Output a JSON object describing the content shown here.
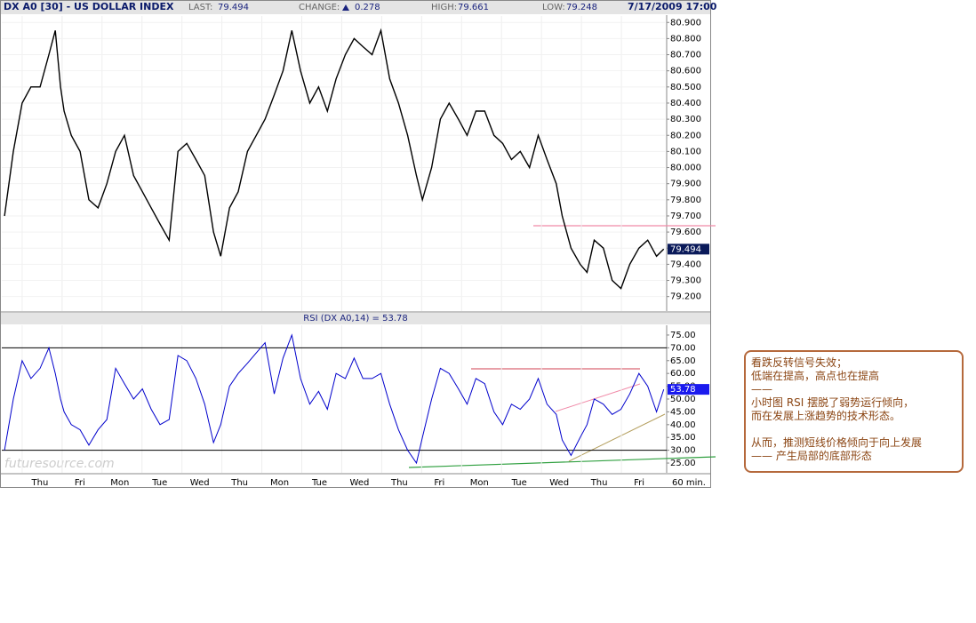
{
  "header": {
    "title": "DX A0 [30] - US DOLLAR INDEX",
    "last_label": "LAST:",
    "last": "79.494",
    "change_label": "CHANGE:",
    "change": "0.278",
    "high_label": "HIGH:",
    "high": "79.661",
    "low_label": "LOW:",
    "low": "79.248",
    "datetime": "7/17/2009 17:00"
  },
  "watermark": "futuresource.com",
  "annotation": {
    "lines": [
      "看跌反转信号失效；",
      "低端在提高，高点也在提高",
      "——",
      "小时图 RSI 摆脱了弱势运行倾向，",
      "而在发展上涨趋势的技术形态。",
      "从而，推测短线价格倾向于向上发展",
      "—— 产生局部的底部形态"
    ]
  },
  "chart_data": [
    {
      "type": "line",
      "color": "#000000",
      "grid": true,
      "x": [
        0.07,
        0.29,
        0.51,
        0.73,
        0.96,
        1.18,
        1.34,
        1.47,
        1.56,
        1.74,
        1.96,
        2.18,
        2.41,
        2.63,
        2.85,
        3.07,
        3.3,
        3.52,
        3.74,
        3.96,
        4.19,
        4.41,
        4.63,
        4.86,
        5.08,
        5.3,
        5.48,
        5.7,
        5.92,
        6.15,
        6.37,
        6.59,
        6.82,
        7.04,
        7.26,
        7.48,
        7.71,
        7.93,
        8.15,
        8.37,
        8.6,
        8.82,
        9.04,
        9.27,
        9.49,
        9.71,
        9.93,
        10.16,
        10.38,
        10.53,
        10.76,
        10.98,
        11.2,
        11.43,
        11.65,
        11.87,
        12.09,
        12.32,
        12.54,
        12.76,
        12.98,
        13.21,
        13.43,
        13.65,
        13.88,
        14.03,
        14.25,
        14.48,
        14.65,
        14.83,
        15.06,
        15.28,
        15.5,
        15.72,
        15.95,
        16.17,
        16.39,
        16.57
      ],
      "values": [
        79.7,
        80.1,
        80.4,
        80.5,
        80.5,
        80.7,
        80.85,
        80.5,
        80.35,
        80.2,
        80.1,
        79.8,
        79.75,
        79.9,
        80.1,
        80.2,
        79.95,
        79.85,
        79.75,
        79.65,
        79.55,
        80.1,
        80.15,
        80.05,
        79.95,
        79.6,
        79.45,
        79.75,
        79.85,
        80.1,
        80.2,
        80.3,
        80.45,
        80.6,
        80.85,
        80.6,
        80.4,
        80.5,
        80.35,
        80.55,
        80.7,
        80.8,
        80.75,
        80.7,
        80.85,
        80.55,
        80.4,
        80.2,
        79.95,
        79.8,
        80.0,
        80.3,
        80.4,
        80.3,
        80.2,
        80.35,
        80.35,
        80.2,
        80.15,
        80.05,
        80.1,
        80.0,
        80.2,
        80.05,
        79.9,
        79.7,
        79.5,
        79.4,
        79.35,
        79.55,
        79.5,
        79.3,
        79.25,
        79.4,
        79.5,
        79.55,
        79.45,
        79.494
      ],
      "xlim": [
        0,
        16.6
      ],
      "ylim": [
        79.11,
        80.94
      ],
      "yticks": [
        {
          "value": 79.2,
          "label": "79.200"
        },
        {
          "value": 79.3,
          "label": "79.300"
        },
        {
          "value": 79.4,
          "label": "79.400"
        },
        {
          "value": 79.5,
          "label": "79.500"
        },
        {
          "value": 79.6,
          "label": "79.600"
        },
        {
          "value": 79.7,
          "label": "79.700"
        },
        {
          "value": 79.8,
          "label": "79.800"
        },
        {
          "value": 79.9,
          "label": "79.900"
        },
        {
          "value": 80.0,
          "label": "80.000"
        },
        {
          "value": 80.1,
          "label": "80.100"
        },
        {
          "value": 80.2,
          "label": "80.200"
        },
        {
          "value": 80.3,
          "label": "80.300"
        },
        {
          "value": 80.4,
          "label": "80.400"
        },
        {
          "value": 80.5,
          "label": "80.500"
        },
        {
          "value": 80.6,
          "label": "80.600"
        },
        {
          "value": 80.7,
          "label": "80.700"
        },
        {
          "value": 80.8,
          "label": "80.800"
        },
        {
          "value": 80.9,
          "label": "80.900"
        }
      ]
    },
    {
      "type": "line",
      "title": "RSI (DX A0,14) = 53.78",
      "color": "#0000cc",
      "last_label": "53.78",
      "xlabel": "60 min.",
      "x": [
        0.07,
        0.29,
        0.51,
        0.73,
        0.96,
        1.18,
        1.34,
        1.47,
        1.56,
        1.74,
        1.96,
        2.18,
        2.41,
        2.63,
        2.85,
        3.07,
        3.3,
        3.52,
        3.74,
        3.96,
        4.19,
        4.41,
        4.63,
        4.86,
        5.08,
        5.3,
        5.48,
        5.7,
        5.92,
        6.15,
        6.37,
        6.59,
        6.82,
        7.04,
        7.26,
        7.48,
        7.71,
        7.93,
        8.15,
        8.37,
        8.6,
        8.82,
        9.04,
        9.27,
        9.49,
        9.71,
        9.93,
        10.16,
        10.38,
        10.53,
        10.76,
        10.98,
        11.2,
        11.43,
        11.65,
        11.87,
        12.09,
        12.32,
        12.54,
        12.76,
        12.98,
        13.21,
        13.43,
        13.65,
        13.88,
        14.03,
        14.25,
        14.48,
        14.65,
        14.83,
        15.06,
        15.28,
        15.5,
        15.72,
        15.95,
        16.17,
        16.39,
        16.57
      ],
      "values": [
        30,
        50,
        65,
        58,
        62,
        70,
        60,
        50,
        45,
        40,
        38,
        32,
        38,
        42,
        62,
        56,
        50,
        54,
        46,
        40,
        42,
        67,
        65,
        58,
        48,
        33,
        40,
        55,
        60,
        64,
        68,
        72,
        52,
        66,
        75,
        58,
        48,
        53,
        46,
        60,
        58,
        66,
        58,
        58,
        60,
        48,
        38,
        30,
        25,
        35,
        50,
        62,
        60,
        54,
        48,
        58,
        56,
        45,
        40,
        48,
        46,
        50,
        58,
        48,
        44,
        34,
        28,
        35,
        40,
        50,
        48,
        44,
        46,
        52,
        60,
        55,
        45,
        53.78
      ],
      "xlim": [
        0,
        16.6
      ],
      "ylim": [
        21.2,
        78.8
      ],
      "levels": [
        70,
        30
      ],
      "xticks": [
        {
          "value": 1,
          "label": "Thu"
        },
        {
          "value": 2,
          "label": "Fri"
        },
        {
          "value": 3,
          "label": "Mon"
        },
        {
          "value": 4,
          "label": "Tue"
        },
        {
          "value": 5,
          "label": "Wed"
        },
        {
          "value": 6,
          "label": "Thu"
        },
        {
          "value": 7,
          "label": "Mon"
        },
        {
          "value": 8,
          "label": "Tue"
        },
        {
          "value": 9,
          "label": "Wed"
        },
        {
          "value": 10,
          "label": "Thu"
        },
        {
          "value": 11,
          "label": "Fri"
        },
        {
          "value": 12,
          "label": "Mon"
        },
        {
          "value": 13,
          "label": "Tue"
        },
        {
          "value": 14,
          "label": "Wed"
        },
        {
          "value": 15,
          "label": "Thu"
        },
        {
          "value": 16,
          "label": "Fri"
        }
      ],
      "yticks": [
        {
          "value": 25,
          "label": "25.00"
        },
        {
          "value": 30,
          "label": "30.00"
        },
        {
          "value": 35,
          "label": "35.00"
        },
        {
          "value": 40,
          "label": "40.00"
        },
        {
          "value": 45,
          "label": "45.00"
        },
        {
          "value": 50,
          "label": "50.00"
        },
        {
          "value": 55,
          "label": "55.00"
        },
        {
          "value": 60,
          "label": "60.00"
        },
        {
          "value": 65,
          "label": "65.00"
        },
        {
          "value": 70,
          "label": "70.00"
        },
        {
          "value": 75,
          "label": "75.00"
        }
      ]
    }
  ]
}
